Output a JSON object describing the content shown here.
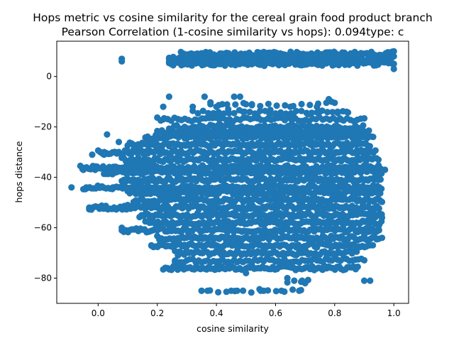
{
  "chart_data": {
    "type": "scatter",
    "title": "Hops metric vs cosine similarity for the cereal grain food product branch",
    "subtitle": "Pearson Correlation (1-cosine similarity vs hops): 0.094type: c",
    "xlabel": "cosine similarity",
    "ylabel": "hops distance",
    "xlim": [
      -0.14,
      1.05
    ],
    "ylim": [
      -90,
      14
    ],
    "xticks": [
      0.0,
      0.2,
      0.4,
      0.6,
      0.8,
      1.0
    ],
    "xtick_labels": [
      "0.0",
      "0.2",
      "0.4",
      "0.6",
      "0.8",
      "1.0"
    ],
    "yticks": [
      -80,
      -60,
      -40,
      -20,
      0
    ],
    "ytick_labels": [
      "−80",
      "−60",
      "−40",
      "−20",
      "0"
    ],
    "grid": false,
    "legend": "none",
    "colors": {
      "marker": "#1f77b4"
    },
    "series": [
      {
        "points": [
          [
            -0.09,
            -44
          ],
          [
            -0.05,
            -37
          ],
          [
            -0.04,
            -44
          ],
          [
            -0.03,
            -52
          ],
          [
            -0.02,
            -31
          ],
          [
            -0.01,
            -37
          ],
          [
            0.0,
            -44
          ],
          [
            0.01,
            -52
          ],
          [
            0.02,
            -31
          ],
          [
            0.03,
            -23
          ],
          [
            0.04,
            -37
          ],
          [
            0.05,
            -44
          ],
          [
            0.06,
            -36
          ],
          [
            0.07,
            -26
          ],
          [
            0.08,
            -60
          ],
          [
            0.09,
            -61
          ],
          [
            0.1,
            -51
          ],
          [
            0.12,
            -29
          ],
          [
            0.14,
            -44
          ],
          [
            0.16,
            -35
          ],
          [
            0.18,
            -67
          ],
          [
            0.2,
            -61
          ],
          [
            0.08,
            7
          ],
          [
            0.08,
            6
          ],
          [
            0.12,
            -42
          ],
          [
            0.15,
            -30
          ],
          [
            0.18,
            -56
          ],
          [
            0.2,
            -28
          ],
          [
            0.22,
            -17
          ],
          [
            0.22,
            -12
          ],
          [
            0.24,
            -8
          ],
          [
            0.24,
            6
          ],
          [
            0.24,
            7
          ],
          [
            0.25,
            -76
          ],
          [
            0.26,
            -73
          ],
          [
            0.27,
            -71
          ],
          [
            0.28,
            -70
          ],
          [
            0.29,
            9
          ],
          [
            0.3,
            8
          ],
          [
            0.3,
            -76
          ],
          [
            0.32,
            -12
          ],
          [
            0.33,
            -26
          ],
          [
            0.34,
            -20
          ],
          [
            0.35,
            -85
          ],
          [
            0.36,
            -8
          ],
          [
            0.37,
            -85
          ],
          [
            0.38,
            -11
          ],
          [
            0.4,
            -12
          ],
          [
            0.41,
            -15
          ],
          [
            0.42,
            -11
          ],
          [
            0.44,
            -13
          ],
          [
            0.45,
            -85
          ],
          [
            0.46,
            -8
          ],
          [
            0.47,
            -85
          ],
          [
            0.48,
            -8
          ],
          [
            0.49,
            -14
          ],
          [
            0.5,
            -11
          ],
          [
            0.5,
            -78
          ],
          [
            0.52,
            -11
          ],
          [
            0.54,
            -16
          ],
          [
            0.55,
            -85
          ],
          [
            0.56,
            -85
          ],
          [
            0.58,
            -15
          ],
          [
            0.6,
            -16
          ],
          [
            0.62,
            -85
          ],
          [
            0.64,
            -80
          ],
          [
            0.65,
            -12
          ],
          [
            0.66,
            -15
          ],
          [
            0.68,
            -85
          ],
          [
            0.69,
            -81
          ],
          [
            0.7,
            -82
          ],
          [
            0.71,
            -15
          ],
          [
            0.72,
            -76
          ],
          [
            0.74,
            -12
          ],
          [
            0.75,
            -14
          ],
          [
            0.76,
            -76
          ],
          [
            0.78,
            -9
          ],
          [
            0.79,
            -10
          ],
          [
            0.8,
            -20
          ],
          [
            0.81,
            -14
          ],
          [
            0.82,
            -17
          ],
          [
            0.84,
            -14
          ],
          [
            0.86,
            -73
          ],
          [
            0.88,
            -26
          ],
          [
            0.9,
            -81
          ],
          [
            0.92,
            -81
          ],
          [
            0.95,
            -61
          ],
          [
            0.96,
            -56
          ],
          [
            0.96,
            -64
          ],
          [
            0.97,
            -37
          ],
          [
            1.0,
            5
          ],
          [
            1.0,
            8
          ],
          [
            1.0,
            10
          ],
          [
            1.0,
            3
          ]
        ],
        "dense_bands": [
          {
            "y": -85,
            "x": [
              0.35,
              0.7
            ],
            "density": 0.25
          },
          {
            "y": -81,
            "x": [
              0.64,
              0.72
            ],
            "density": 0.3
          },
          {
            "y": -76,
            "x": [
              0.22,
              0.88
            ],
            "density": 1
          },
          {
            "y": -73,
            "x": [
              0.26,
              0.9
            ],
            "density": 0.7
          },
          {
            "y": -70,
            "x": [
              0.26,
              0.88
            ],
            "density": 0.9
          },
          {
            "y": -67,
            "x": [
              0.18,
              0.93
            ],
            "density": 1
          },
          {
            "y": -64,
            "x": [
              0.2,
              0.95
            ],
            "density": 1
          },
          {
            "y": -61,
            "x": [
              0.08,
              0.95
            ],
            "density": 1
          },
          {
            "y": -58,
            "x": [
              0.16,
              0.96
            ],
            "density": 1
          },
          {
            "y": -55,
            "x": [
              0.14,
              0.96
            ],
            "density": 1
          },
          {
            "y": -52,
            "x": [
              -0.03,
              0.95
            ],
            "density": 1
          },
          {
            "y": -49,
            "x": [
              0.12,
              0.96
            ],
            "density": 1
          },
          {
            "y": -46,
            "x": [
              0.1,
              0.96
            ],
            "density": 1
          },
          {
            "y": -44,
            "x": [
              -0.05,
              0.96
            ],
            "density": 1
          },
          {
            "y": -41,
            "x": [
              0.08,
              0.96
            ],
            "density": 1
          },
          {
            "y": -38,
            "x": [
              0.02,
              0.96
            ],
            "density": 1
          },
          {
            "y": -36,
            "x": [
              -0.06,
              0.96
            ],
            "density": 1
          },
          {
            "y": -33,
            "x": [
              0.08,
              0.95
            ],
            "density": 1
          },
          {
            "y": -30,
            "x": [
              0.0,
              0.94
            ],
            "density": 1
          },
          {
            "y": -27,
            "x": [
              0.1,
              0.92
            ],
            "density": 1
          },
          {
            "y": -24,
            "x": [
              0.16,
              0.93
            ],
            "density": 1
          },
          {
            "y": -22,
            "x": [
              0.2,
              0.92
            ],
            "density": 0.9
          },
          {
            "y": -20,
            "x": [
              0.24,
              0.9
            ],
            "density": 0.8
          },
          {
            "y": -17,
            "x": [
              0.2,
              0.9
            ],
            "density": 0.6
          },
          {
            "y": -14,
            "x": [
              0.32,
              0.85
            ],
            "density": 0.4
          },
          {
            "y": -11,
            "x": [
              0.38,
              0.8
            ],
            "density": 0.25
          },
          {
            "y": 5,
            "x": [
              0.24,
              1.0
            ],
            "density": 1
          },
          {
            "y": 7,
            "x": [
              0.24,
              1.0
            ],
            "density": 1
          },
          {
            "y": 9,
            "x": [
              0.28,
              1.0
            ],
            "density": 1
          }
        ]
      }
    ]
  }
}
